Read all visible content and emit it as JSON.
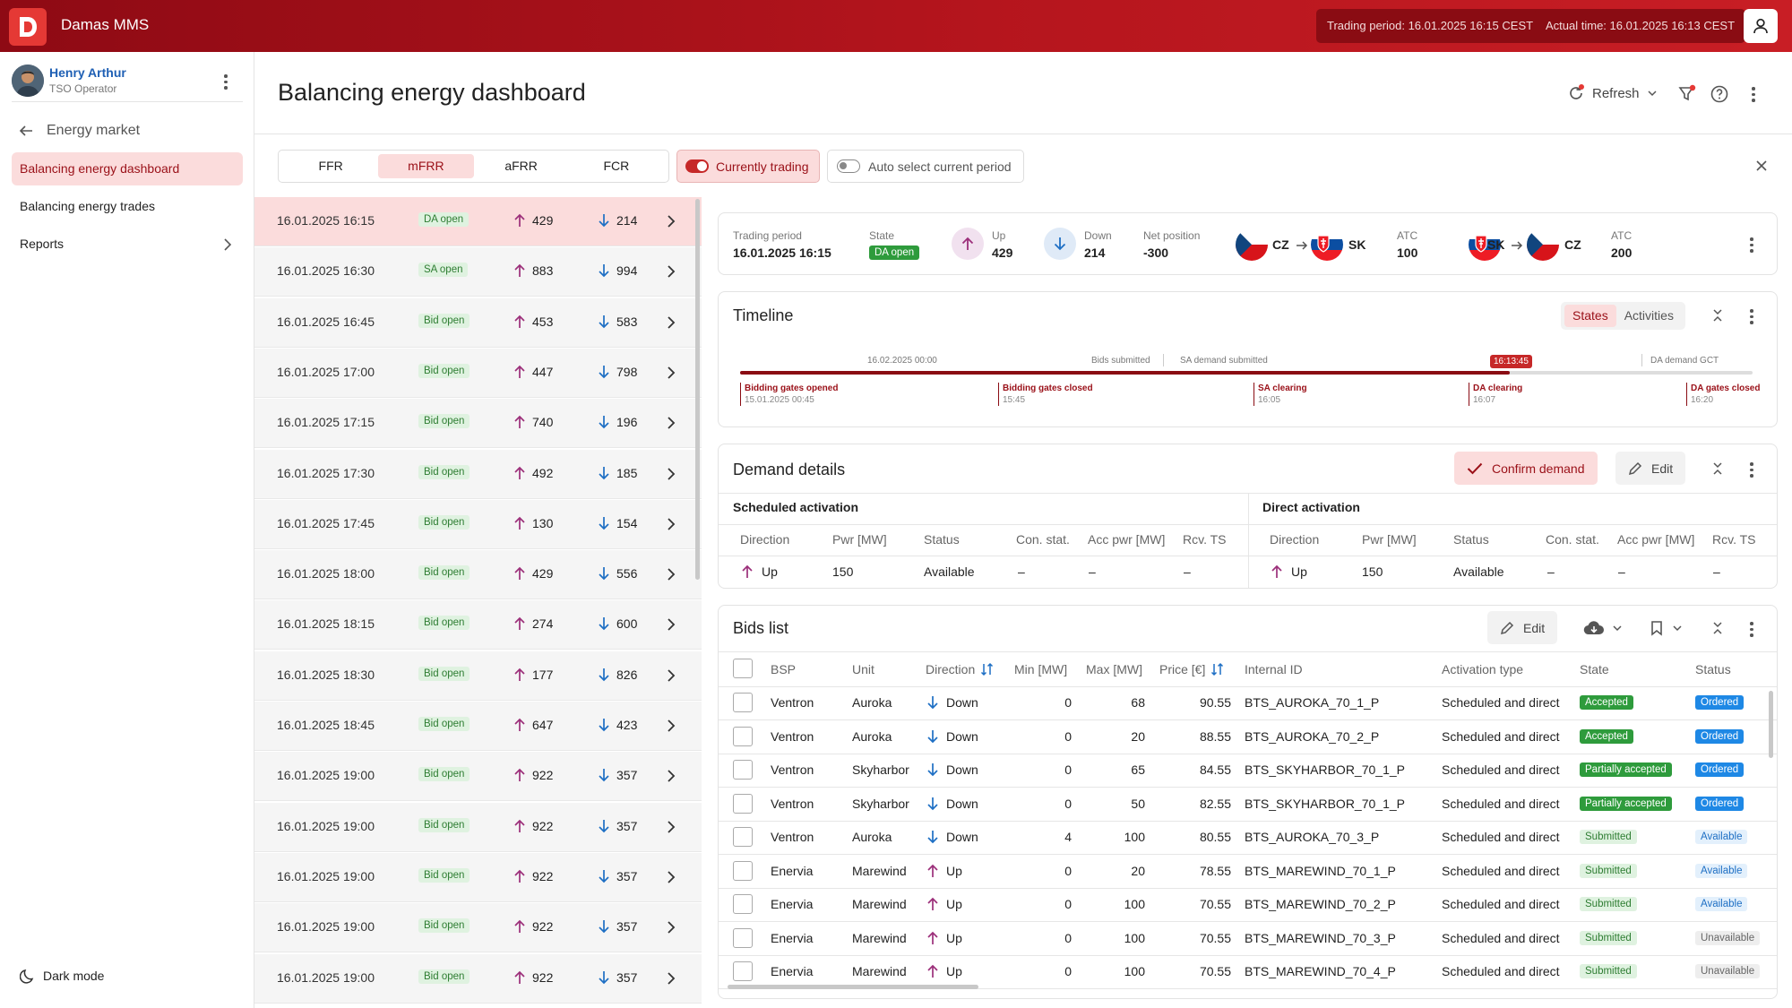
{
  "app": {
    "name": "Damas MMS"
  },
  "topbar": {
    "trading_period": "Trading period: 16.01.2025 16:15 CEST",
    "actual_time": "Actual time: 16.01.2025 16:13 CEST"
  },
  "user": {
    "name": "Henry Arthur",
    "role": "TSO Operator"
  },
  "sidebar": {
    "back_label": "Energy market",
    "items": [
      {
        "label": "Balancing energy dashboard"
      },
      {
        "label": "Balancing energy trades"
      },
      {
        "label": "Reports"
      }
    ],
    "dark_mode": "Dark mode"
  },
  "page": {
    "title": "Balancing energy dashboard",
    "refresh": "Refresh"
  },
  "tabs": [
    {
      "label": "FFR"
    },
    {
      "label": "mFRR"
    },
    {
      "label": "aFRR"
    },
    {
      "label": "FCR"
    }
  ],
  "toggles": {
    "currently_trading": "Currently trading",
    "auto_select": "Auto select current period"
  },
  "periods": [
    {
      "dt": "16.01.2025 16:15",
      "state": "DA open",
      "up": "429",
      "down": "214"
    },
    {
      "dt": "16.01.2025 16:30",
      "state": "SA open",
      "up": "883",
      "down": "994"
    },
    {
      "dt": "16.01.2025 16:45",
      "state": "Bid open",
      "up": "453",
      "down": "583"
    },
    {
      "dt": "16.01.2025 17:00",
      "state": "Bid open",
      "up": "447",
      "down": "798"
    },
    {
      "dt": "16.01.2025 17:15",
      "state": "Bid open",
      "up": "740",
      "down": "196"
    },
    {
      "dt": "16.01.2025 17:30",
      "state": "Bid open",
      "up": "492",
      "down": "185"
    },
    {
      "dt": "16.01.2025 17:45",
      "state": "Bid open",
      "up": "130",
      "down": "154"
    },
    {
      "dt": "16.01.2025 18:00",
      "state": "Bid open",
      "up": "429",
      "down": "556"
    },
    {
      "dt": "16.01.2025 18:15",
      "state": "Bid open",
      "up": "274",
      "down": "600"
    },
    {
      "dt": "16.01.2025 18:30",
      "state": "Bid open",
      "up": "177",
      "down": "826"
    },
    {
      "dt": "16.01.2025 18:45",
      "state": "Bid open",
      "up": "647",
      "down": "423"
    },
    {
      "dt": "16.01.2025 19:00",
      "state": "Bid open",
      "up": "922",
      "down": "357"
    },
    {
      "dt": "16.01.2025 19:00",
      "state": "Bid open",
      "up": "922",
      "down": "357"
    },
    {
      "dt": "16.01.2025 19:00",
      "state": "Bid open",
      "up": "922",
      "down": "357"
    },
    {
      "dt": "16.01.2025 19:00",
      "state": "Bid open",
      "up": "922",
      "down": "357"
    },
    {
      "dt": "16.01.2025 19:00",
      "state": "Bid open",
      "up": "922",
      "down": "357"
    }
  ],
  "summary": {
    "trading_period_label": "Trading period",
    "trading_period": "16.01.2025 16:15",
    "state_label": "State",
    "state": "DA open",
    "up_label": "Up",
    "up": "429",
    "down_label": "Down",
    "down": "214",
    "net_label": "Net position",
    "net": "-300",
    "route1_from": "CZ",
    "route1_to": "SK",
    "atc_label": "ATC",
    "atc1": "100",
    "route2_from": "SK",
    "route2_to": "CZ",
    "atc2": "200"
  },
  "timeline": {
    "title": "Timeline",
    "tabs": [
      "States",
      "Activities"
    ],
    "top_labels": [
      "16.02.2025 00:00",
      "Bids submitted",
      "SA demand submitted",
      "DA demand GCT"
    ],
    "now": "16:13:45",
    "events": [
      {
        "name": "Bidding gates opened",
        "time": "15.01.2025 00:45"
      },
      {
        "name": "Bidding gates closed",
        "time": "15:45"
      },
      {
        "name": "SA clearing",
        "time": "16:05"
      },
      {
        "name": "DA clearing",
        "time": "16:07"
      },
      {
        "name": "DA gates closed",
        "time": "16:20"
      }
    ],
    "progress": 0.76
  },
  "demand": {
    "title": "Demand details",
    "confirm": "Confirm demand",
    "edit": "Edit",
    "scheduled_title": "Scheduled activation",
    "direct_title": "Direct activation",
    "columns": [
      "Direction",
      "Pwr [MW]",
      "Status",
      "Con. stat.",
      "Acc pwr [MW]",
      "Rcv. TS"
    ],
    "scheduled_row": {
      "direction": "Up",
      "pwr": "150",
      "status": "Available",
      "con": "–",
      "acc": "–",
      "rcv": "–"
    },
    "direct_row": {
      "direction": "Up",
      "pwr": "150",
      "status": "Available",
      "con": "–",
      "acc": "–",
      "rcv": "–"
    }
  },
  "bids": {
    "title": "Bids list",
    "edit": "Edit",
    "columns": [
      "BSP",
      "Unit",
      "Direction",
      "Min [MW]",
      "Max [MW]",
      "Price [€]",
      "Internal ID",
      "Activation type",
      "State",
      "Status"
    ],
    "rows": [
      {
        "bsp": "Ventron",
        "unit": "Auroka",
        "dir": "Down",
        "min": "0",
        "max": "68",
        "price": "90.55",
        "id": "BTS_AUROKA_70_1_P",
        "act": "Scheduled and direct",
        "state": "Accepted",
        "status": "Ordered"
      },
      {
        "bsp": "Ventron",
        "unit": "Auroka",
        "dir": "Down",
        "min": "0",
        "max": "20",
        "price": "88.55",
        "id": "BTS_AUROKA_70_2_P",
        "act": "Scheduled and direct",
        "state": "Accepted",
        "status": "Ordered"
      },
      {
        "bsp": "Ventron",
        "unit": "Skyharbor",
        "dir": "Down",
        "min": "0",
        "max": "65",
        "price": "84.55",
        "id": "BTS_SKYHARBOR_70_1_P",
        "act": "Scheduled and direct",
        "state": "Partially accepted",
        "status": "Ordered"
      },
      {
        "bsp": "Ventron",
        "unit": "Skyharbor",
        "dir": "Down",
        "min": "0",
        "max": "50",
        "price": "82.55",
        "id": "BTS_SKYHARBOR_70_1_P",
        "act": "Scheduled and direct",
        "state": "Partially accepted",
        "status": "Ordered"
      },
      {
        "bsp": "Ventron",
        "unit": "Auroka",
        "dir": "Down",
        "min": "4",
        "max": "100",
        "price": "80.55",
        "id": "BTS_AUROKA_70_3_P",
        "act": "Scheduled and direct",
        "state": "Submitted",
        "status": "Available"
      },
      {
        "bsp": "Enervia",
        "unit": "Marewind",
        "dir": "Up",
        "min": "0",
        "max": "20",
        "price": "78.55",
        "id": "BTS_MAREWIND_70_1_P",
        "act": "Scheduled and direct",
        "state": "Submitted",
        "status": "Available"
      },
      {
        "bsp": "Enervia",
        "unit": "Marewind",
        "dir": "Up",
        "min": "0",
        "max": "100",
        "price": "70.55",
        "id": "BTS_MAREWIND_70_2_P",
        "act": "Scheduled and direct",
        "state": "Submitted",
        "status": "Available"
      },
      {
        "bsp": "Enervia",
        "unit": "Marewind",
        "dir": "Up",
        "min": "0",
        "max": "100",
        "price": "70.55",
        "id": "BTS_MAREWIND_70_3_P",
        "act": "Scheduled and direct",
        "state": "Submitted",
        "status": "Unavailable"
      },
      {
        "bsp": "Enervia",
        "unit": "Marewind",
        "dir": "Up",
        "min": "0",
        "max": "100",
        "price": "70.55",
        "id": "BTS_MAREWIND_70_4_P",
        "act": "Scheduled and direct",
        "state": "Submitted",
        "status": "Unavailable"
      }
    ]
  }
}
